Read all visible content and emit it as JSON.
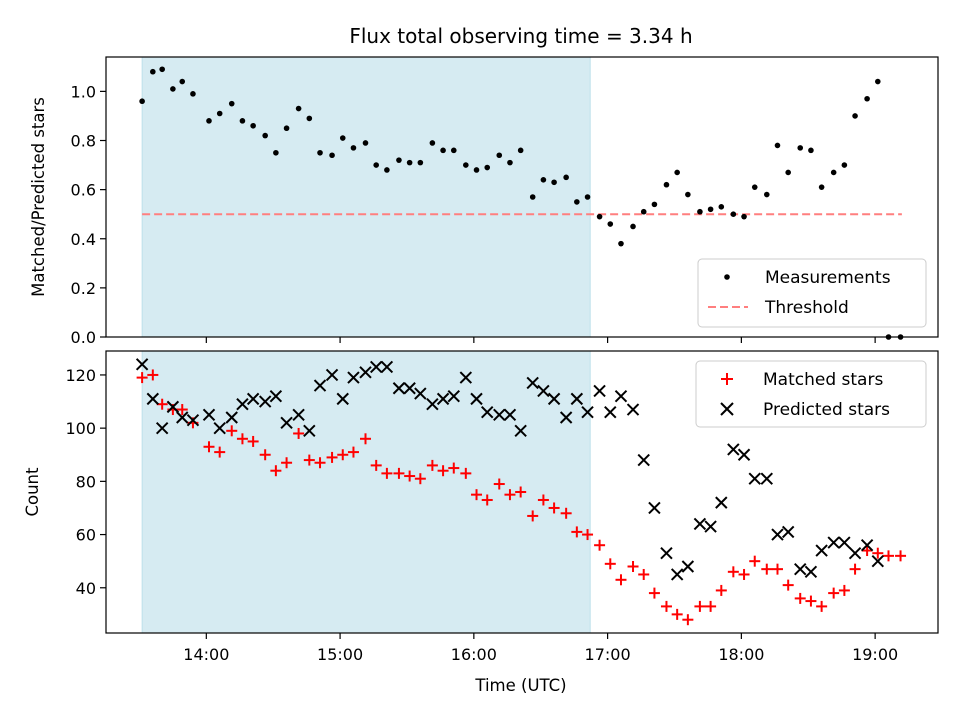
{
  "chart_data": [
    {
      "type": "scatter",
      "title": "Flux total observing time = 3.34 h",
      "xlabel": "",
      "ylabel": "Matched/Predicted stars",
      "ylim": [
        0,
        1.14
      ],
      "yticks": [
        "0.0",
        "0.2",
        "0.4",
        "0.6",
        "0.8",
        "1.0"
      ],
      "ytick_values": [
        0,
        0.2,
        0.4,
        0.6,
        0.8,
        1.0
      ],
      "x_unit": "hours UTC",
      "xlim": [
        13.25,
        19.47
      ],
      "shaded_span": [
        13.52,
        16.87
      ],
      "threshold": {
        "name": "Threshold",
        "value": 0.5,
        "x_range": [
          13.52,
          19.2
        ],
        "color": "#ff7f7f"
      },
      "series": [
        {
          "name": "Measurements",
          "color": "#000000",
          "x": [
            13.52,
            13.6,
            13.67,
            13.75,
            13.82,
            13.9,
            14.02,
            14.1,
            14.19,
            14.27,
            14.35,
            14.44,
            14.52,
            14.6,
            14.69,
            14.77,
            14.85,
            14.94,
            15.02,
            15.1,
            15.19,
            15.27,
            15.35,
            15.44,
            15.52,
            15.6,
            15.69,
            15.77,
            15.85,
            15.94,
            16.02,
            16.1,
            16.19,
            16.27,
            16.35,
            16.44,
            16.52,
            16.6,
            16.69,
            16.77,
            16.85,
            16.94,
            17.02,
            17.1,
            17.19,
            17.27,
            17.35,
            17.44,
            17.52,
            17.6,
            17.69,
            17.77,
            17.85,
            17.94,
            18.02,
            18.1,
            18.19,
            18.27,
            18.35,
            18.44,
            18.52,
            18.6,
            18.69,
            18.77,
            18.85,
            18.94,
            19.02,
            19.1,
            19.19
          ],
          "values": [
            0.96,
            1.08,
            1.09,
            1.01,
            1.04,
            0.99,
            0.88,
            0.91,
            0.95,
            0.88,
            0.86,
            0.82,
            0.75,
            0.85,
            0.93,
            0.89,
            0.75,
            0.74,
            0.81,
            0.77,
            0.79,
            0.7,
            0.68,
            0.72,
            0.71,
            0.71,
            0.79,
            0.76,
            0.76,
            0.7,
            0.68,
            0.69,
            0.74,
            0.71,
            0.76,
            0.57,
            0.64,
            0.63,
            0.65,
            0.55,
            0.57,
            0.49,
            0.46,
            0.38,
            0.45,
            0.51,
            0.54,
            0.62,
            0.67,
            0.58,
            0.51,
            0.52,
            0.53,
            0.5,
            0.49,
            0.61,
            0.58,
            0.78,
            0.67,
            0.77,
            0.76,
            0.61,
            0.67,
            0.7,
            0.9,
            0.97,
            1.04,
            0.0,
            0.0
          ]
        }
      ],
      "legend": [
        "Measurements",
        "Threshold"
      ],
      "legend_position": "lower-right"
    },
    {
      "type": "scatter",
      "title": "",
      "xlabel": "Time (UTC)",
      "ylabel": "Count",
      "ylim": [
        23,
        129
      ],
      "yticks": [
        "40",
        "60",
        "80",
        "100",
        "120"
      ],
      "ytick_values": [
        40,
        60,
        80,
        100,
        120
      ],
      "xticks": [
        "14:00",
        "15:00",
        "16:00",
        "17:00",
        "18:00",
        "19:00"
      ],
      "xtick_values": [
        14,
        15,
        16,
        17,
        18,
        19
      ],
      "xlim": [
        13.25,
        19.47
      ],
      "shaded_span": [
        13.52,
        16.87
      ],
      "series": [
        {
          "name": "Matched stars",
          "color": "#ff0000",
          "marker": "plus",
          "x": [
            13.52,
            13.6,
            13.67,
            13.75,
            13.82,
            13.9,
            14.02,
            14.1,
            14.19,
            14.27,
            14.35,
            14.44,
            14.52,
            14.6,
            14.69,
            14.77,
            14.85,
            14.94,
            15.02,
            15.1,
            15.19,
            15.27,
            15.35,
            15.44,
            15.52,
            15.6,
            15.69,
            15.77,
            15.85,
            15.94,
            16.02,
            16.1,
            16.19,
            16.27,
            16.35,
            16.44,
            16.52,
            16.6,
            16.69,
            16.77,
            16.85,
            16.94,
            17.02,
            17.1,
            17.19,
            17.27,
            17.35,
            17.44,
            17.52,
            17.6,
            17.69,
            17.77,
            17.85,
            17.94,
            18.02,
            18.1,
            18.19,
            18.27,
            18.35,
            18.44,
            18.52,
            18.6,
            18.69,
            18.77,
            18.85,
            18.94,
            19.02,
            19.1,
            19.19
          ],
          "values": [
            119,
            120,
            109,
            107,
            107,
            102,
            93,
            91,
            99,
            96,
            95,
            90,
            84,
            87,
            98,
            88,
            87,
            89,
            90,
            91,
            96,
            86,
            83,
            83,
            82,
            81,
            86,
            84,
            85,
            83,
            75,
            73,
            79,
            75,
            76,
            67,
            73,
            70,
            68,
            61,
            60,
            56,
            49,
            43,
            48,
            45,
            38,
            33,
            30,
            28,
            33,
            33,
            39,
            46,
            45,
            50,
            47,
            47,
            41,
            36,
            35,
            33,
            38,
            39,
            47,
            54,
            53,
            52,
            52
          ]
        },
        {
          "name": "Predicted stars",
          "color": "#000000",
          "marker": "x",
          "x": [
            13.52,
            13.6,
            13.67,
            13.75,
            13.82,
            13.9,
            14.02,
            14.1,
            14.19,
            14.27,
            14.35,
            14.44,
            14.52,
            14.6,
            14.69,
            14.77,
            14.85,
            14.94,
            15.02,
            15.1,
            15.19,
            15.27,
            15.35,
            15.44,
            15.52,
            15.6,
            15.69,
            15.77,
            15.85,
            15.94,
            16.02,
            16.1,
            16.19,
            16.27,
            16.35,
            16.44,
            16.52,
            16.6,
            16.69,
            16.77,
            16.85,
            16.94,
            17.02,
            17.1,
            17.19,
            17.27,
            17.35,
            17.44,
            17.52,
            17.6,
            17.69,
            17.77,
            17.85,
            17.94,
            18.02,
            18.1,
            18.19,
            18.27,
            18.35,
            18.44,
            18.52,
            18.6,
            18.69,
            18.77,
            18.85,
            18.94,
            19.02
          ],
          "values": [
            124,
            111,
            100,
            108,
            104,
            103,
            105,
            100,
            104,
            109,
            111,
            110,
            112,
            102,
            105,
            99,
            116,
            120,
            111,
            119,
            121,
            123,
            123,
            115,
            115,
            113,
            109,
            111,
            112,
            119,
            111,
            106,
            105,
            105,
            99,
            117,
            114,
            111,
            104,
            111,
            106,
            114,
            106,
            112,
            107,
            88,
            70,
            53,
            45,
            48,
            64,
            63,
            72,
            92,
            90,
            81,
            81,
            60,
            61,
            47,
            46,
            54,
            57,
            57,
            53,
            56,
            50
          ]
        }
      ],
      "legend": [
        "Matched stars",
        "Predicted stars"
      ],
      "legend_position": "upper-right"
    }
  ]
}
